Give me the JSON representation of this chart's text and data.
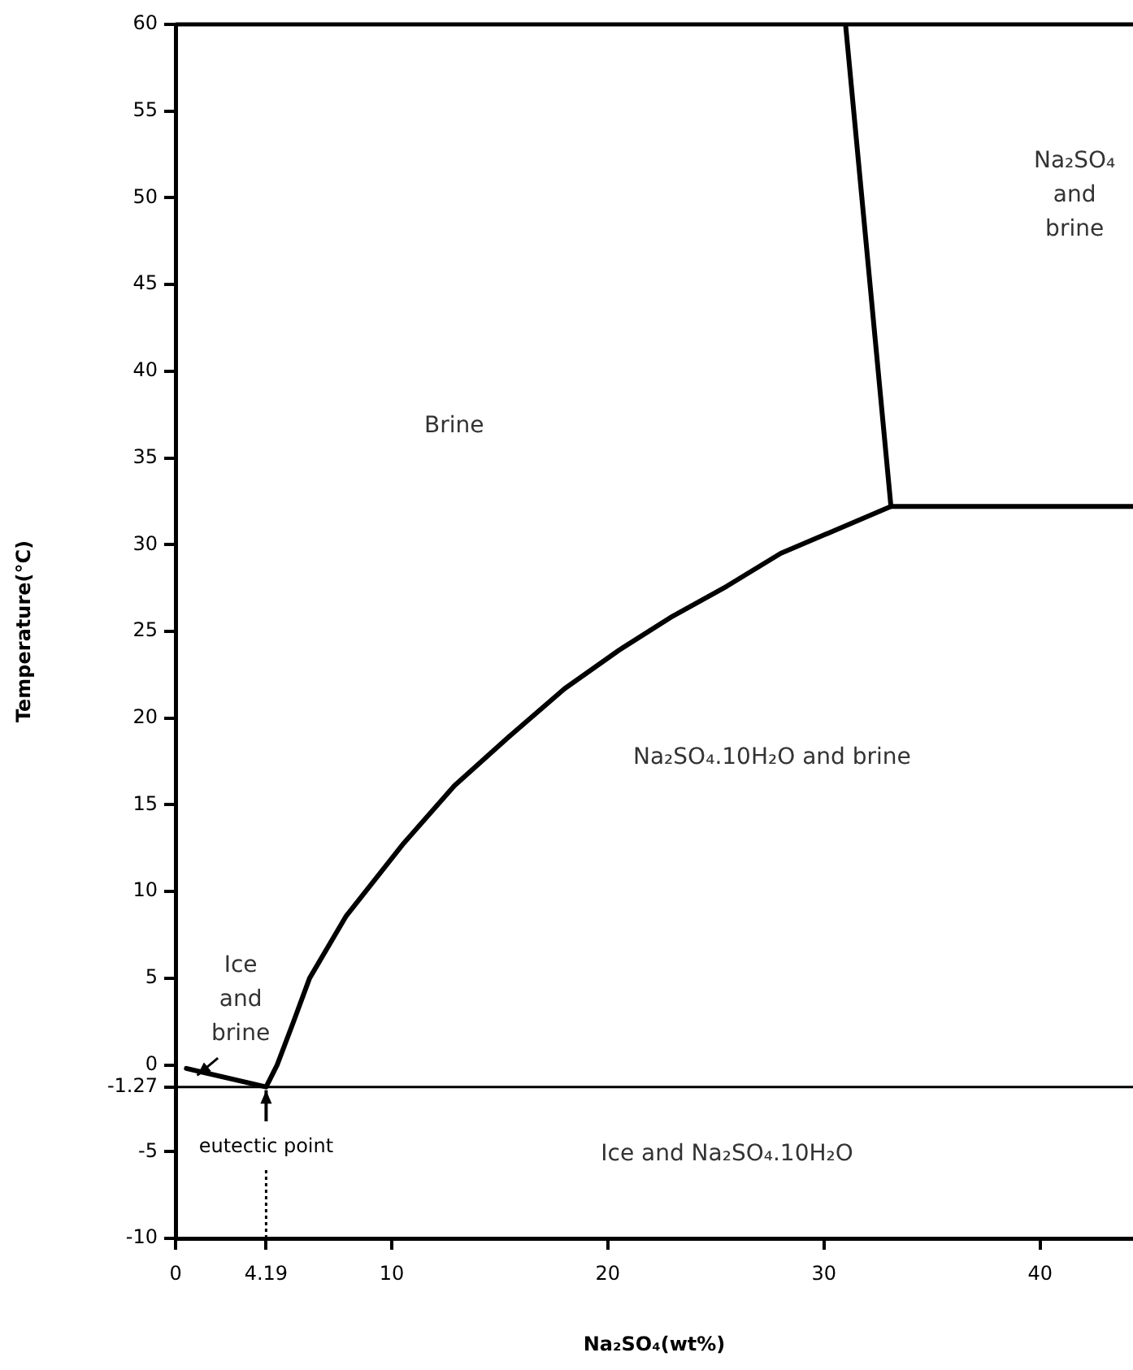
{
  "chart_data": {
    "type": "line",
    "xlabel": "Na₂SO₄(wt%)",
    "ylabel": "Temperature(°C)",
    "xlim": [
      0,
      44.3
    ],
    "ylim": [
      -10,
      60
    ],
    "xticks": [
      0,
      4.19,
      10,
      20,
      30,
      40
    ],
    "yticks": [
      -10,
      -5,
      -1.27,
      0,
      5,
      10,
      15,
      20,
      25,
      30,
      35,
      40,
      45,
      50,
      55,
      60
    ],
    "grid": false,
    "legend": false,
    "marker": "none",
    "line_style": "solid",
    "series": [
      {
        "color": "#000000",
        "x": [
          0.5,
          4.19,
          4.7,
          5.4,
          6.2,
          7.9,
          10.5,
          12.9,
          15.4,
          18.0,
          20.5,
          22.9,
          25.5,
          28.0,
          33.1,
          44.3
        ],
        "values": [
          -0.2,
          -1.27,
          0,
          2.3,
          5,
          8.6,
          12.7,
          16.1,
          18.9,
          21.7,
          23.9,
          25.8,
          27.6,
          29.5,
          32.2,
          32.2
        ]
      },
      {
        "color": "#000000",
        "x": [
          33.1,
          31.0
        ],
        "values": [
          32.2,
          60
        ]
      }
    ],
    "ref_lines": [
      {
        "axis": "y",
        "value": -1.27,
        "color": "#000000",
        "line_style": "solid"
      },
      {
        "axis": "x",
        "value": 4.19,
        "label": "eutectic point",
        "color": "#000000",
        "line_style": "dotted"
      }
    ],
    "annotations": [
      "Brine",
      "Na₂SO₄\nand\nbrine",
      "Na₂SO₄.10H₂O and brine",
      {
        "text": "Ice\nand\nbrine",
        "x": 1.0,
        "y": -0.6
      },
      "Ice and Na₂SO₄.10H₂O"
    ]
  }
}
